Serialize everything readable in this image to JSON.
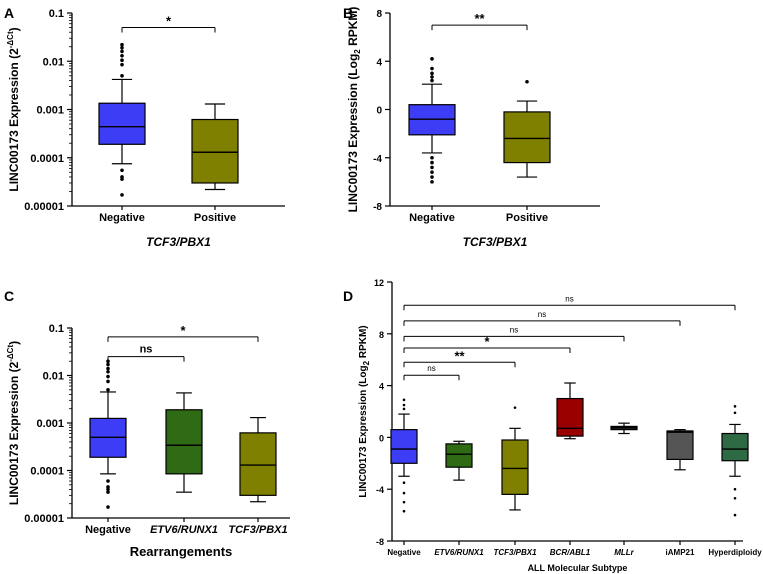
{
  "chart_data": [
    {
      "panel": "A",
      "type": "box",
      "scale": "log",
      "ylim": [
        1e-05,
        0.1
      ],
      "yticks": [
        0.1,
        0.01,
        0.001,
        0.0001,
        1e-05
      ],
      "ytick_labels": [
        "0.1",
        "0.01",
        "0.001",
        "0.0001",
        "0.00001"
      ],
      "ylabel": "LINC00173 Expression (2^-ΔCt)",
      "ylabel_text": "LINC00173 Expression (2",
      "ylabel_sup": "-ΔCt",
      "ylabel_close": ")",
      "xlabel": "TCF3/PBX1",
      "categories": [
        "Negative",
        "Positive"
      ],
      "boxes": [
        {
          "name": "Negative",
          "color": "#3d3df5",
          "whisker_low": 7.5e-05,
          "q1": 0.00019,
          "median": 0.00044,
          "q3": 0.00135,
          "whisker_high": 0.0042,
          "outliers": [
            0.022,
            0.019,
            0.016,
            0.013,
            0.0105,
            0.0085,
            0.005,
            5.5e-05,
            4e-05,
            3.6e-05,
            1.7e-05
          ]
        },
        {
          "name": "Positive",
          "color": "#7f7f00",
          "whisker_low": 2.2e-05,
          "q1": 3e-05,
          "median": 0.00013,
          "q3": 0.00062,
          "whisker_high": 0.0013,
          "outliers": []
        }
      ],
      "comparisons": [
        {
          "from": "Negative",
          "to": "Positive",
          "label": "*",
          "level": 0.05
        }
      ]
    },
    {
      "panel": "B",
      "type": "box",
      "scale": "linear",
      "ylim": [
        -8,
        8
      ],
      "yticks": [
        8,
        4,
        0,
        -4,
        -8
      ],
      "ytick_labels": [
        "8",
        "4",
        "0",
        "-4",
        "-8"
      ],
      "ylabel": "LINC00173 Expression (Log2 RPKM)",
      "ylabel_text": "LINC00173 Expression (Log",
      "ylabel_sub": "2",
      "ylabel_close": " RPKM)",
      "xlabel": "TCF3/PBX1",
      "categories": [
        "Negative",
        "Positive"
      ],
      "boxes": [
        {
          "name": "Negative",
          "color": "#3d3df5",
          "whisker_low": -3.6,
          "q1": -2.1,
          "median": -0.8,
          "q3": 0.4,
          "whisker_high": 2.1,
          "outliers": [
            4.2,
            3.4,
            3.0,
            2.7,
            2.4,
            -4.0,
            -4.4,
            -4.8,
            -5.2,
            -5.6,
            -6.0
          ]
        },
        {
          "name": "Positive",
          "color": "#7f7f00",
          "whisker_low": -5.6,
          "q1": -4.4,
          "median": -2.4,
          "q3": -0.2,
          "whisker_high": 0.7,
          "outliers": [
            2.3
          ]
        }
      ],
      "comparisons": [
        {
          "from": "Negative",
          "to": "Positive",
          "label": "**",
          "level": 7
        }
      ]
    },
    {
      "panel": "C",
      "type": "box",
      "scale": "log",
      "ylim": [
        1e-05,
        0.1
      ],
      "yticks": [
        0.1,
        0.01,
        0.001,
        0.0001,
        1e-05
      ],
      "ytick_labels": [
        "0.1",
        "0.01",
        "0.001",
        "0.0001",
        "0.00001"
      ],
      "ylabel": "LINC00173 Expression (2^-ΔCt)",
      "ylabel_text": "LINC00173 Expression (2",
      "ylabel_sup": "-ΔCt",
      "ylabel_close": ")",
      "xlabel": "Rearrangements",
      "categories": [
        "Negative",
        "ETV6/RUNX1",
        "TCF3/PBX1"
      ],
      "boxes": [
        {
          "name": "Negative",
          "color": "#3d3df5",
          "whisker_low": 8.5e-05,
          "q1": 0.00019,
          "median": 0.0005,
          "q3": 0.00125,
          "whisker_high": 0.0045,
          "outliers": [
            0.02,
            0.017,
            0.014,
            0.012,
            0.0095,
            0.0075,
            0.005,
            6e-05,
            4.5e-05,
            4e-05,
            3.5e-05,
            1.7e-05
          ]
        },
        {
          "name": "ETV6/RUNX1",
          "color": "#2e6b14",
          "whisker_low": 3.5e-05,
          "q1": 8.5e-05,
          "median": 0.00034,
          "q3": 0.0019,
          "whisker_high": 0.0043,
          "outliers": []
        },
        {
          "name": "TCF3/PBX1",
          "color": "#7f7f00",
          "whisker_low": 2.2e-05,
          "q1": 3e-05,
          "median": 0.00013,
          "q3": 0.00062,
          "whisker_high": 0.0013,
          "outliers": []
        }
      ],
      "comparisons": [
        {
          "from": "Negative",
          "to": "ETV6/RUNX1",
          "label": "ns",
          "level": 0.025
        },
        {
          "from": "Negative",
          "to": "TCF3/PBX1",
          "label": "*",
          "level": 0.065
        }
      ]
    },
    {
      "panel": "D",
      "type": "box",
      "scale": "linear",
      "ylim": [
        -8,
        12
      ],
      "yticks": [
        12,
        8,
        4,
        0,
        -4,
        -8
      ],
      "ytick_labels": [
        "12",
        "8",
        "4",
        "0",
        "-4",
        "-8"
      ],
      "ylabel": "LINC00173 Expression (Log2 RPKM)",
      "ylabel_text": "LINC00173 Expression (Log",
      "ylabel_sub": "2",
      "ylabel_close": " RPKM)",
      "xlabel": "ALL Molecular Subtype",
      "categories": [
        "Negative",
        "ETV6/RUNX1",
        "TCF3/PBX1",
        "BCR/ABL1",
        "MLLr",
        "iAMP21",
        "Hyperdiploidy"
      ],
      "italic_categories": [
        "ETV6/RUNX1",
        "TCF3/PBX1",
        "BCR/ABL1",
        "MLLr"
      ],
      "boxes": [
        {
          "name": "Negative",
          "color": "#3d3df5",
          "whisker_low": -3.0,
          "q1": -2.0,
          "median": -0.9,
          "q3": 0.6,
          "whisker_high": 1.8,
          "outliers": [
            2.9,
            2.5,
            2.2,
            -3.5,
            -4.3,
            -5.0,
            -5.7
          ]
        },
        {
          "name": "ETV6/RUNX1",
          "color": "#2e6b14",
          "whisker_low": -3.3,
          "q1": -2.3,
          "median": -1.3,
          "q3": -0.5,
          "whisker_high": -0.3,
          "outliers": []
        },
        {
          "name": "TCF3/PBX1",
          "color": "#7f7f00",
          "whisker_low": -5.6,
          "q1": -4.4,
          "median": -2.4,
          "q3": -0.2,
          "whisker_high": 0.7,
          "outliers": [
            2.3
          ]
        },
        {
          "name": "BCR/ABL1",
          "color": "#990000",
          "whisker_low": -0.1,
          "q1": 0.1,
          "median": 0.7,
          "q3": 3.0,
          "whisker_high": 4.2,
          "outliers": []
        },
        {
          "name": "MLLr",
          "color": "#2a2a2a",
          "whisker_low": 0.3,
          "q1": 0.6,
          "median": 0.75,
          "q3": 0.85,
          "whisker_high": 1.1,
          "outliers": []
        },
        {
          "name": "iAMP21",
          "color": "#555555",
          "whisker_low": -2.5,
          "q1": -1.7,
          "median": 0.4,
          "q3": 0.5,
          "whisker_high": 0.6,
          "outliers": []
        },
        {
          "name": "Hyperdiploidy",
          "color": "#2e6b45",
          "whisker_low": -3.0,
          "q1": -1.8,
          "median": -0.9,
          "q3": 0.3,
          "whisker_high": 1.0,
          "outliers": [
            2.4,
            1.9,
            -4.0,
            -4.7,
            -6.0
          ]
        }
      ],
      "comparisons": [
        {
          "from": "Negative",
          "to": "ETV6/RUNX1",
          "label": "ns",
          "level": 4.8
        },
        {
          "from": "Negative",
          "to": "TCF3/PBX1",
          "label": "**",
          "level": 5.8
        },
        {
          "from": "Negative",
          "to": "BCR/ABL1",
          "label": "*",
          "level": 6.9
        },
        {
          "from": "Negative",
          "to": "MLLr",
          "label": "ns",
          "level": 7.8
        },
        {
          "from": "Negative",
          "to": "iAMP21",
          "label": "ns",
          "level": 9.0
        },
        {
          "from": "Negative",
          "to": "Hyperdiploidy",
          "label": "ns",
          "level": 10.2
        }
      ]
    }
  ]
}
